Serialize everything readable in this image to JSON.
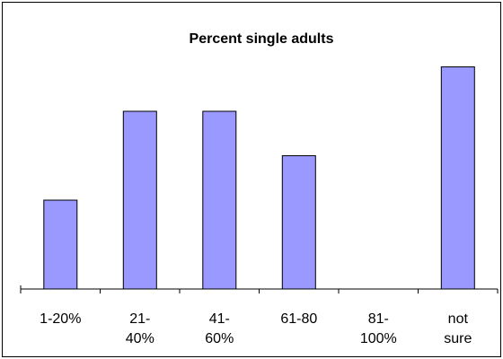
{
  "chart_data": {
    "type": "bar",
    "title": "Percent single adults",
    "categories": [
      [
        "1-20%"
      ],
      [
        "21-",
        "40%"
      ],
      [
        "41-",
        "60%"
      ],
      [
        "61-80"
      ],
      [
        "81-",
        "100%"
      ],
      [
        "not",
        "sure"
      ]
    ],
    "values": [
      6,
      12,
      12,
      9,
      0,
      15
    ],
    "ylim": [
      0,
      16
    ],
    "grid": false,
    "legend": "none",
    "xlabel": "",
    "ylabel": "",
    "colors": {
      "bar_fill": "#9999ff",
      "bar_stroke": "#000000",
      "axis": "#000000"
    }
  }
}
